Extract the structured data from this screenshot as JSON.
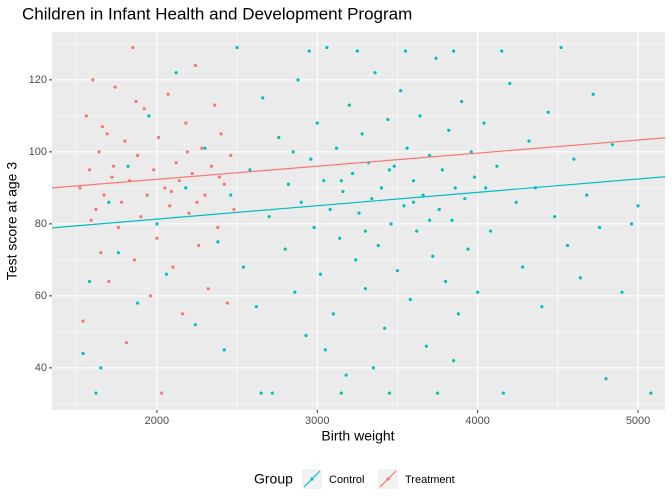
{
  "chart_data": {
    "type": "scatter",
    "title": "Children in Infant Health and Development Program",
    "x_label": "Birth weight",
    "y_label": "Test score at age 3",
    "legend_title": "Group",
    "legend_position": "bottom",
    "xlim": [
      1346,
      5168
    ],
    "ylim": [
      28.3,
      133.3
    ],
    "xticks": [
      2000,
      3000,
      4000,
      5000
    ],
    "yticks": [
      40,
      60,
      80,
      100,
      120
    ],
    "xminor": [
      1500,
      2500,
      3500,
      4500
    ],
    "yminor": [
      30,
      50,
      70,
      90,
      110,
      130
    ],
    "grid": true,
    "series": [
      {
        "name": "Control",
        "color": "#00BFC4",
        "x": [
          1540,
          1580,
          1620,
          1650,
          1700,
          1760,
          1820,
          1880,
          1950,
          2000,
          2060,
          2120,
          2180,
          2240,
          2300,
          2380,
          2420,
          2460,
          2500,
          2540,
          2580,
          2620,
          2660,
          2700,
          2720,
          2760,
          2800,
          2820,
          2860,
          2880,
          2900,
          2930,
          2960,
          2980,
          3000,
          3020,
          3040,
          3060,
          3080,
          3100,
          3120,
          3140,
          3160,
          3180,
          3200,
          3220,
          3240,
          3260,
          3280,
          3300,
          3320,
          3340,
          3360,
          3380,
          3400,
          3420,
          3440,
          3460,
          3480,
          3500,
          3520,
          3540,
          3560,
          3580,
          3600,
          3620,
          3640,
          3660,
          3680,
          3700,
          3720,
          3740,
          3760,
          3780,
          3800,
          3820,
          3840,
          3860,
          3880,
          3900,
          3920,
          3940,
          3960,
          3980,
          4000,
          4040,
          4080,
          4120,
          4160,
          4200,
          4240,
          4280,
          4320,
          4360,
          4400,
          4440,
          4480,
          4520,
          4560,
          4600,
          4640,
          4680,
          4720,
          4760,
          4800,
          4840,
          4900,
          4960,
          5000,
          5080,
          3150,
          3450,
          3750,
          2650,
          3050,
          3350,
          3850,
          2950,
          3250,
          3550,
          3850,
          4150,
          3300,
          3450,
          3600,
          3150,
          2850,
          4050,
          3700
        ],
        "values": [
          44,
          64,
          33,
          40,
          86,
          72,
          96,
          58,
          110,
          80,
          66,
          122,
          90,
          52,
          101,
          75,
          45,
          88,
          129,
          68,
          95,
          57,
          115,
          82,
          33,
          104,
          73,
          91,
          61,
          120,
          86,
          49,
          98,
          79,
          108,
          66,
          92,
          129,
          84,
          55,
          101,
          76,
          89,
          38,
          113,
          94,
          70,
          83,
          105,
          62,
          97,
          87,
          122,
          74,
          90,
          51,
          109,
          80,
          96,
          67,
          117,
          85,
          101,
          59,
          92,
          78,
          110,
          88,
          46,
          99,
          71,
          126,
          84,
          95,
          64,
          106,
          81,
          90,
          55,
          114,
          87,
          73,
          100,
          93,
          61,
          108,
          78,
          96,
          33,
          119,
          86,
          68,
          103,
          90,
          57,
          111,
          82,
          129,
          74,
          98,
          65,
          88,
          116,
          79,
          37,
          102,
          61,
          80,
          85,
          33,
          33,
          33,
          33,
          33,
          45,
          40,
          42,
          128,
          128,
          128,
          128,
          128,
          78,
          95,
          86,
          92,
          100,
          90,
          81
        ],
        "fit": {
          "x": [
            1346,
            5168
          ],
          "values": [
            78.9,
            93.1
          ]
        }
      },
      {
        "name": "Treatment",
        "color": "#F8766D",
        "x": [
          1520,
          1540,
          1560,
          1580,
          1600,
          1620,
          1640,
          1650,
          1670,
          1690,
          1700,
          1720,
          1740,
          1760,
          1780,
          1800,
          1810,
          1830,
          1850,
          1860,
          1880,
          1900,
          1920,
          1940,
          1960,
          1980,
          2000,
          2010,
          2030,
          2050,
          2070,
          2080,
          2100,
          2120,
          2140,
          2160,
          2180,
          2200,
          2220,
          2240,
          2260,
          2280,
          2300,
          2320,
          2340,
          2360,
          2380,
          2400,
          2420,
          2440,
          2460,
          2480,
          1590,
          1730,
          1870,
          2090,
          2250,
          2390,
          1660,
          2190
        ],
        "values": [
          90,
          53,
          110,
          95,
          120,
          84,
          100,
          72,
          88,
          105,
          64,
          93,
          118,
          79,
          86,
          103,
          47,
          92,
          129,
          70,
          99,
          82,
          112,
          88,
          60,
          95,
          76,
          104,
          33,
          90,
          116,
          85,
          68,
          97,
          92,
          55,
          108,
          83,
          94,
          124,
          74,
          101,
          88,
          62,
          96,
          113,
          79,
          105,
          91,
          58,
          99,
          84,
          81,
          96,
          114,
          89,
          86,
          93,
          107,
          100
        ],
        "fit": {
          "x": [
            1346,
            5168
          ],
          "values": [
            90,
            103.9
          ]
        }
      }
    ]
  }
}
